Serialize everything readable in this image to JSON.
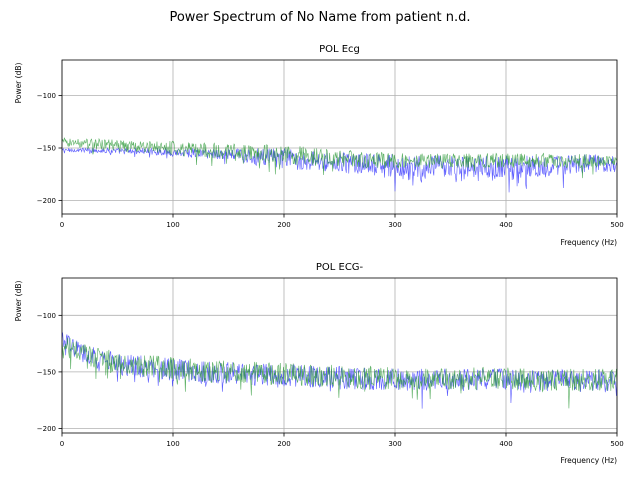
{
  "figure": {
    "title": "Power Spectrum of No Name from patient n.d."
  },
  "colors": {
    "series_blue": "#3333ff",
    "series_green": "#2e9a3a",
    "grid": "#b0b0b0",
    "axis": "#000000"
  },
  "chart_data": [
    {
      "type": "line",
      "title": "POL Ecg",
      "xlabel": "Frequency (Hz)",
      "ylabel": "Power (dB)",
      "xlim": [
        0,
        500
      ],
      "ylim": [
        -213,
        -66
      ],
      "xticks": [
        0,
        100,
        200,
        300,
        400,
        500
      ],
      "xtick_labels": [
        "0",
        "100",
        "200",
        "300",
        "400",
        "500"
      ],
      "yticks": [
        -100,
        -150,
        -200
      ],
      "ytick_labels": [
        "−100",
        "−150",
        "−200"
      ],
      "grid": true,
      "series": [
        {
          "color": "#3333ff",
          "x": [
            0,
            25,
            50,
            75,
            100,
            125,
            150,
            175,
            200,
            225,
            250,
            275,
            300,
            325,
            350,
            375,
            400,
            425,
            450,
            475,
            500
          ],
          "y": [
            -152,
            -152,
            -153,
            -153,
            -154,
            -155,
            -156,
            -158,
            -160,
            -162,
            -164,
            -166,
            -168,
            -170,
            -170,
            -170,
            -169,
            -168,
            -167,
            -165,
            -164
          ],
          "spread": [
            2,
            2,
            3,
            3,
            4,
            5,
            6,
            8,
            10,
            10,
            10,
            11,
            12,
            13,
            13,
            13,
            12,
            11,
            10,
            9,
            8
          ]
        },
        {
          "color": "#2e9a3a",
          "x": [
            0,
            25,
            50,
            75,
            100,
            125,
            150,
            175,
            200,
            225,
            250,
            275,
            300,
            325,
            350,
            375,
            400,
            425,
            450,
            475,
            500
          ],
          "y": [
            -144,
            -146,
            -148,
            -149,
            -150,
            -152,
            -153,
            -155,
            -156,
            -158,
            -160,
            -161,
            -162,
            -162,
            -162,
            -162,
            -162,
            -162,
            -162,
            -162,
            -162
          ],
          "spread": [
            4,
            5,
            6,
            6,
            7,
            7,
            8,
            9,
            9,
            9,
            8,
            8,
            7,
            7,
            7,
            7,
            7,
            7,
            7,
            7,
            6
          ]
        }
      ]
    },
    {
      "type": "line",
      "title": "POL  ECG-",
      "xlabel": "Frequency (Hz)",
      "ylabel": "Power (dB)",
      "xlim": [
        0,
        500
      ],
      "ylim": [
        -204,
        -67
      ],
      "xticks": [
        0,
        100,
        200,
        300,
        400,
        500
      ],
      "xtick_labels": [
        "0",
        "100",
        "200",
        "300",
        "400",
        "500"
      ],
      "yticks": [
        -100,
        -150,
        -200
      ],
      "ytick_labels": [
        "−100",
        "−150",
        "−200"
      ],
      "grid": true,
      "series": [
        {
          "color": "#3333ff",
          "x": [
            0,
            10,
            25,
            50,
            75,
            100,
            125,
            150,
            175,
            200,
            225,
            250,
            275,
            300,
            325,
            350,
            375,
            400,
            425,
            450,
            475,
            500
          ],
          "y": [
            -122,
            -128,
            -136,
            -143,
            -146,
            -148,
            -150,
            -151,
            -152,
            -153,
            -154,
            -155,
            -156,
            -157,
            -157,
            -157,
            -157,
            -157,
            -158,
            -158,
            -158,
            -158
          ],
          "spread": [
            8,
            8,
            9,
            10,
            10,
            10,
            10,
            10,
            10,
            10,
            10,
            10,
            10,
            10,
            10,
            10,
            10,
            10,
            10,
            10,
            10,
            10
          ]
        },
        {
          "color": "#2e9a3a",
          "x": [
            0,
            10,
            25,
            50,
            75,
            100,
            125,
            150,
            175,
            200,
            225,
            250,
            275,
            300,
            325,
            350,
            375,
            400,
            425,
            450,
            475,
            500
          ],
          "y": [
            -124,
            -129,
            -136,
            -142,
            -145,
            -147,
            -149,
            -150,
            -151,
            -152,
            -153,
            -154,
            -155,
            -156,
            -156,
            -156,
            -156,
            -156,
            -157,
            -157,
            -157,
            -157
          ],
          "spread": [
            8,
            8,
            9,
            10,
            10,
            10,
            10,
            10,
            10,
            10,
            10,
            10,
            10,
            10,
            10,
            10,
            10,
            10,
            10,
            10,
            10,
            10
          ]
        }
      ]
    }
  ]
}
